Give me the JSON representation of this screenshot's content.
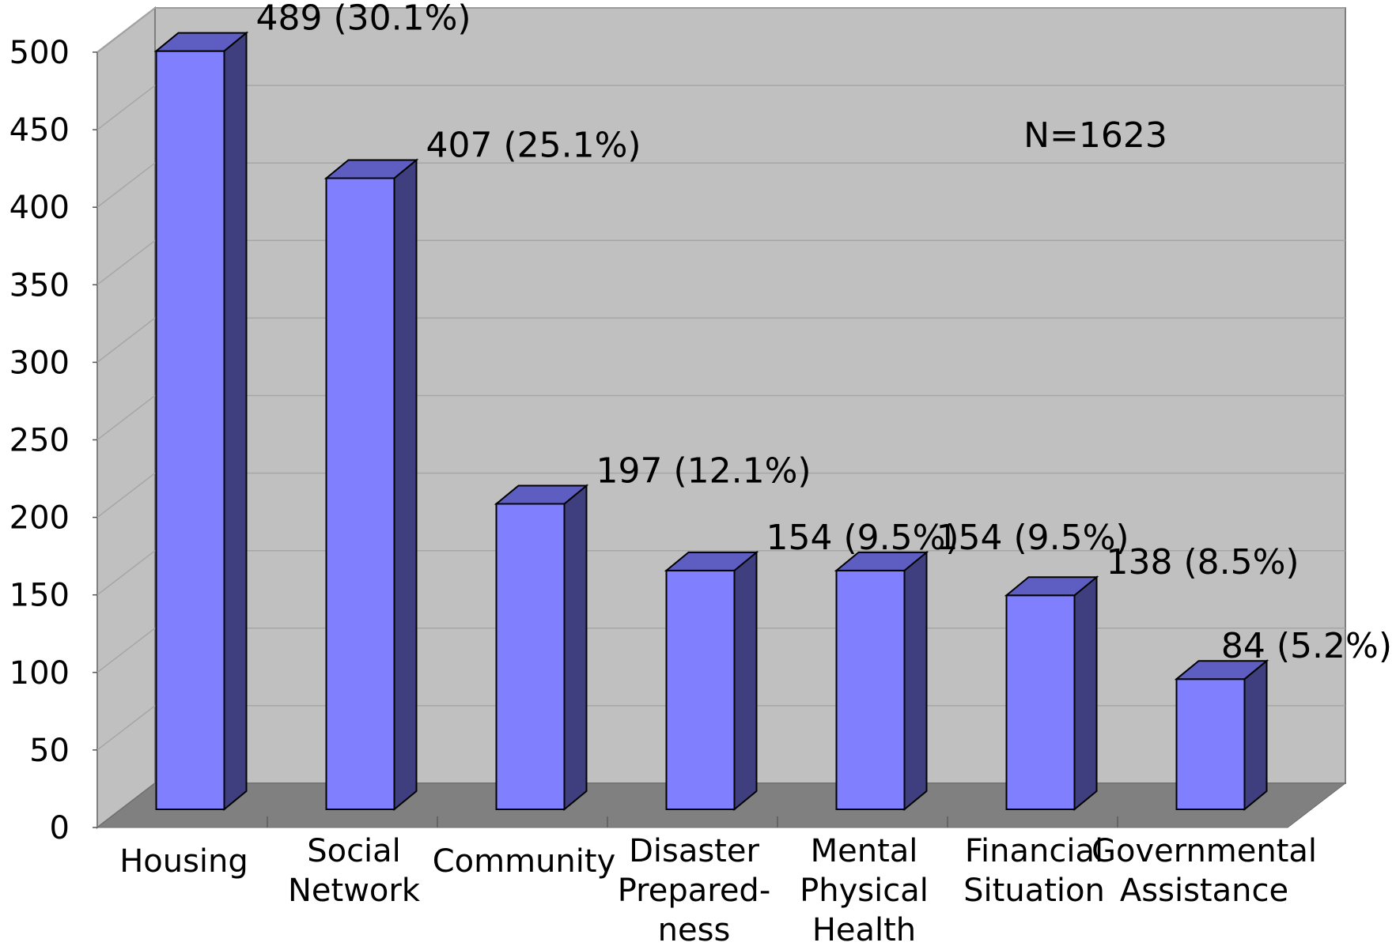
{
  "chart_data": {
    "type": "bar",
    "title": "",
    "xlabel": "",
    "ylabel": "",
    "ylim": [
      0,
      500
    ],
    "yticks": [
      0,
      50,
      100,
      150,
      200,
      250,
      300,
      350,
      400,
      450,
      500
    ],
    "yticks_text": [
      "0",
      "50",
      "100",
      "150",
      "200",
      "250",
      "300",
      "350",
      "400",
      "450",
      "500"
    ],
    "grid": true,
    "style": "3d-bar",
    "categories": [
      [
        "Housing"
      ],
      [
        "Social",
        "Network"
      ],
      [
        "Community"
      ],
      [
        "Disaster",
        "Prepared-",
        "ness"
      ],
      [
        "Mental",
        "Physical",
        "Health"
      ],
      [
        "Financial",
        "Situation"
      ],
      [
        "Governmental",
        "Assistance"
      ]
    ],
    "values": [
      489,
      407,
      197,
      154,
      154,
      138,
      84
    ],
    "data_labels": [
      "489 (30.1%)",
      "407 (25.1%)",
      "197 (12.1%)",
      "154 (9.5%)",
      "154 (9.5%)",
      "138 (8.5%)",
      "84  (5.2%)"
    ],
    "annotation": "N=1623",
    "colors": {
      "bar_front": "#8080FF",
      "bar_side": "#3F3F80",
      "bar_top": "#5E5EC2",
      "back_wall": "#C0C0C0",
      "side_wall": "#C0C0C0",
      "floor": "#808080",
      "gridline": "#A6A6A6"
    }
  }
}
